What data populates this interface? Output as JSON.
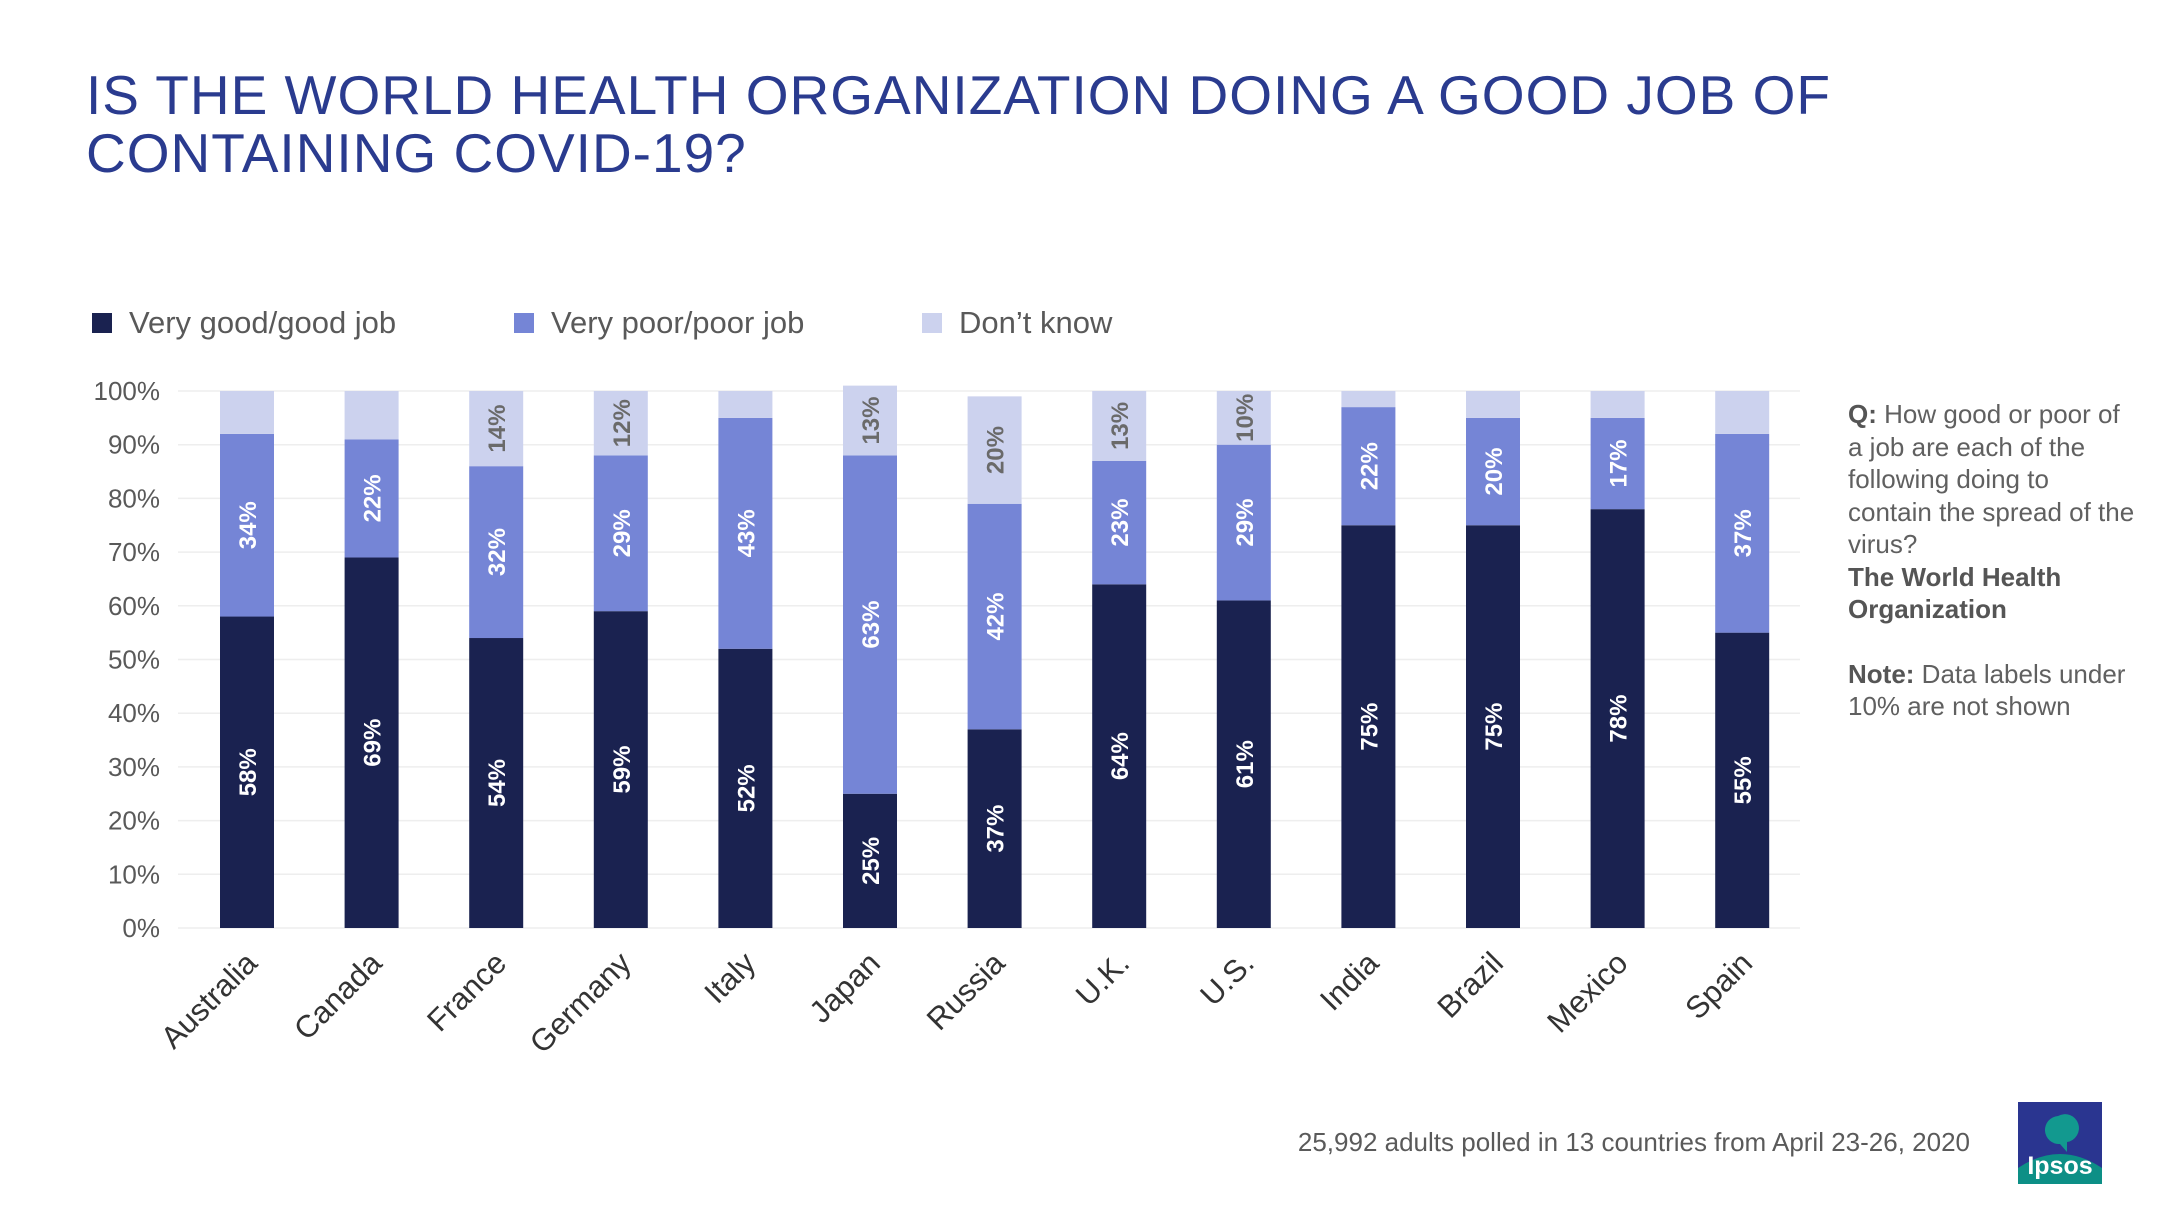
{
  "title": {
    "line1": "IS THE WORLD HEALTH ORGANIZATION DOING A GOOD JOB OF",
    "line2": "CONTAINING COVID-19?"
  },
  "colors": {
    "good": "#1a2250",
    "poor": "#7585d6",
    "dont_know": "#ccd2ee",
    "title": "#2a3b8f",
    "axis_text": "#595959",
    "grid": "#eeeeee"
  },
  "chart_data": {
    "type": "bar",
    "stacked": true,
    "categories": [
      "Australia",
      "Canada",
      "France",
      "Germany",
      "Italy",
      "Japan",
      "Russia",
      "U.K.",
      "U.S.",
      "India",
      "Brazil",
      "Mexico",
      "Spain"
    ],
    "series": [
      {
        "name": "Very good/good job",
        "values": [
          58,
          69,
          54,
          59,
          52,
          25,
          37,
          64,
          61,
          75,
          75,
          78,
          55
        ]
      },
      {
        "name": "Very poor/poor job",
        "values": [
          34,
          22,
          32,
          29,
          43,
          63,
          42,
          23,
          29,
          22,
          20,
          17,
          37
        ]
      },
      {
        "name": "Don’t know",
        "values": [
          8,
          9,
          14,
          12,
          5,
          13,
          20,
          13,
          10,
          3,
          5,
          5,
          8
        ]
      }
    ],
    "ylim": [
      0,
      100
    ],
    "ytick_labels": [
      "0%",
      "10%",
      "20%",
      "30%",
      "40%",
      "50%",
      "60%",
      "70%",
      "80%",
      "90%",
      "100%"
    ],
    "label_threshold": 10,
    "legend_position": "top-left",
    "grid": true
  },
  "side_note": {
    "q_label": "Q:",
    "q_text": "How good or poor of a job are each of the following doing to contain the spread of the virus?",
    "q_subject": "The World Health Organization",
    "note_label": "Note:",
    "note_text": "Data labels under 10% are not shown"
  },
  "footer": "25,992 adults polled in 13 countries from April 23-26, 2020",
  "logo": {
    "text": "Ipsos"
  }
}
